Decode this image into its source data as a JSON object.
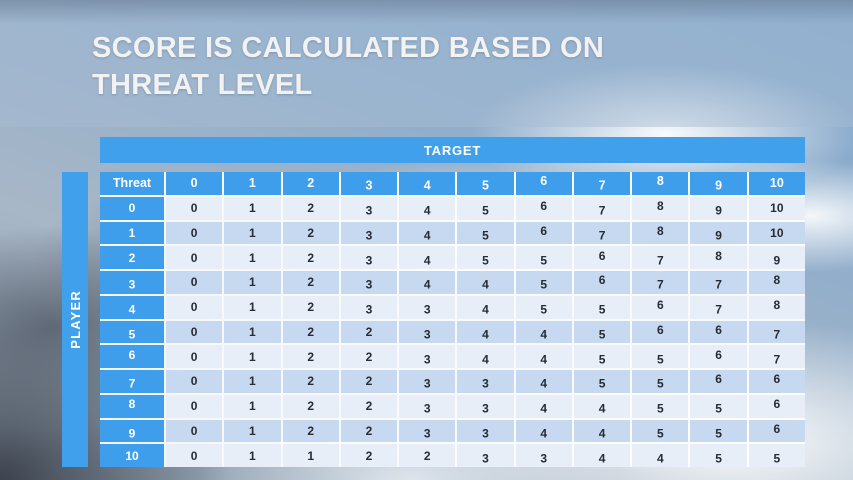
{
  "title": {
    "line1": "SCORE IS CALCULATED BASED ON",
    "line2": "THREAT LEVEL"
  },
  "axes": {
    "target_label": "TARGET",
    "player_label": "PLAYER"
  },
  "table": {
    "header": [
      "Threat",
      "0",
      "1",
      "2",
      "3",
      "4",
      "5",
      "6",
      "7",
      "8",
      "9",
      "10"
    ],
    "rows": [
      {
        "threat": "0",
        "values": [
          0,
          1,
          2,
          3,
          4,
          5,
          6,
          7,
          8,
          9,
          10
        ]
      },
      {
        "threat": "1",
        "values": [
          0,
          1,
          2,
          3,
          4,
          5,
          6,
          7,
          8,
          9,
          10
        ]
      },
      {
        "threat": "2",
        "values": [
          0,
          1,
          2,
          3,
          4,
          5,
          5,
          6,
          7,
          8,
          9
        ]
      },
      {
        "threat": "3",
        "values": [
          0,
          1,
          2,
          3,
          4,
          4,
          5,
          6,
          7,
          7,
          8
        ]
      },
      {
        "threat": "4",
        "values": [
          0,
          1,
          2,
          3,
          3,
          4,
          5,
          5,
          6,
          7,
          8
        ]
      },
      {
        "threat": "5",
        "values": [
          0,
          1,
          2,
          2,
          3,
          4,
          4,
          5,
          6,
          6,
          7
        ]
      },
      {
        "threat": "6",
        "values": [
          0,
          1,
          2,
          2,
          3,
          4,
          4,
          5,
          5,
          6,
          7
        ]
      },
      {
        "threat": "7",
        "values": [
          0,
          1,
          2,
          2,
          3,
          3,
          4,
          5,
          5,
          6,
          6
        ]
      },
      {
        "threat": "8",
        "values": [
          0,
          1,
          2,
          2,
          3,
          3,
          4,
          4,
          5,
          5,
          6
        ]
      },
      {
        "threat": "9",
        "values": [
          0,
          1,
          2,
          2,
          3,
          3,
          4,
          4,
          5,
          5,
          6
        ]
      },
      {
        "threat": "10",
        "values": [
          0,
          1,
          1,
          2,
          2,
          3,
          3,
          4,
          4,
          5,
          5
        ]
      }
    ]
  },
  "colors": {
    "accent_blue": "#41A0EC",
    "header_blue": "#3F9EEB",
    "row_light": "#E8EEF8",
    "row_dark": "#C6D9F0",
    "cell_text": "#262B35",
    "title_text": "#F2F2F2"
  }
}
